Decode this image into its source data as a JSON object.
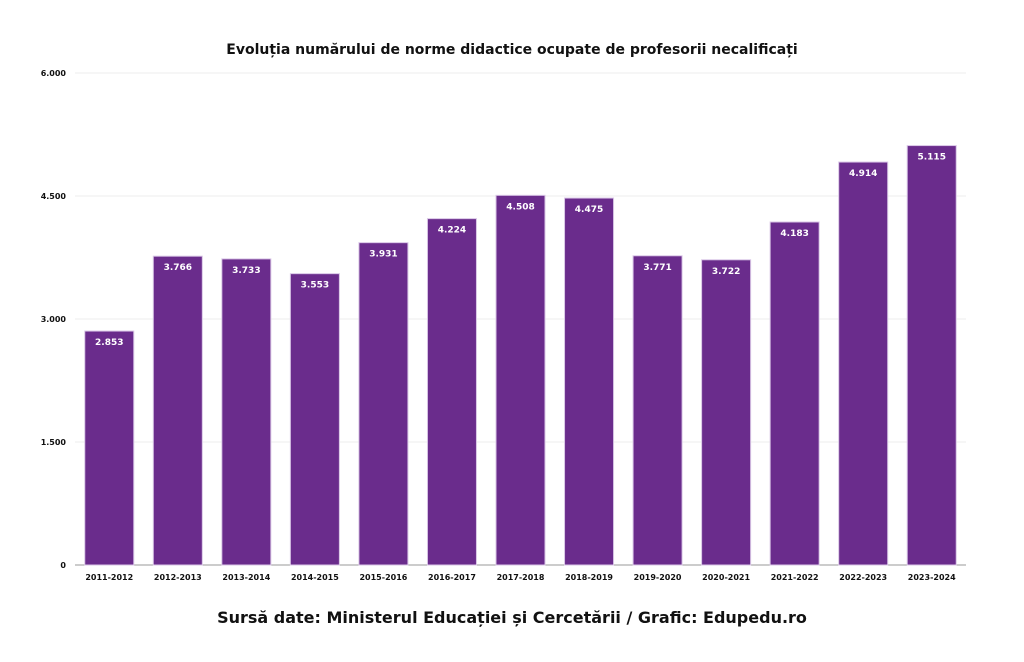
{
  "chart_data": {
    "type": "bar",
    "title": "Evoluția numărului de norme didactice ocupate de profesorii necalificați",
    "categories": [
      "2011-2012",
      "2012-2013",
      "2013-2014",
      "2014-2015",
      "2015-2016",
      "2016-2017",
      "2017-2018",
      "2018-2019",
      "2019-2020",
      "2020-2021",
      "2021-2022",
      "2022-2023",
      "2023-2024"
    ],
    "values": [
      2853,
      3766,
      3733,
      3553,
      3931,
      4224,
      4508,
      4475,
      3771,
      3722,
      4183,
      4914,
      5115
    ],
    "value_labels": [
      "2.853",
      "3.766",
      "3.733",
      "3.553",
      "3.931",
      "4.224",
      "4.508",
      "4.475",
      "3.771",
      "3.722",
      "4.183",
      "4.914",
      "5.115"
    ],
    "ylim": [
      0,
      6000
    ],
    "yticks": [
      0,
      1500,
      3000,
      4500,
      6000
    ],
    "ytick_labels": [
      "0",
      "1.500",
      "3.000",
      "4.500",
      "6.000"
    ],
    "xlabel": "",
    "ylabel": "",
    "grid": true,
    "bar_color": "#6a2c8c",
    "source": "Sursă date: Ministerul Educației și Cercetării / Grafic: Edupedu.ro"
  }
}
